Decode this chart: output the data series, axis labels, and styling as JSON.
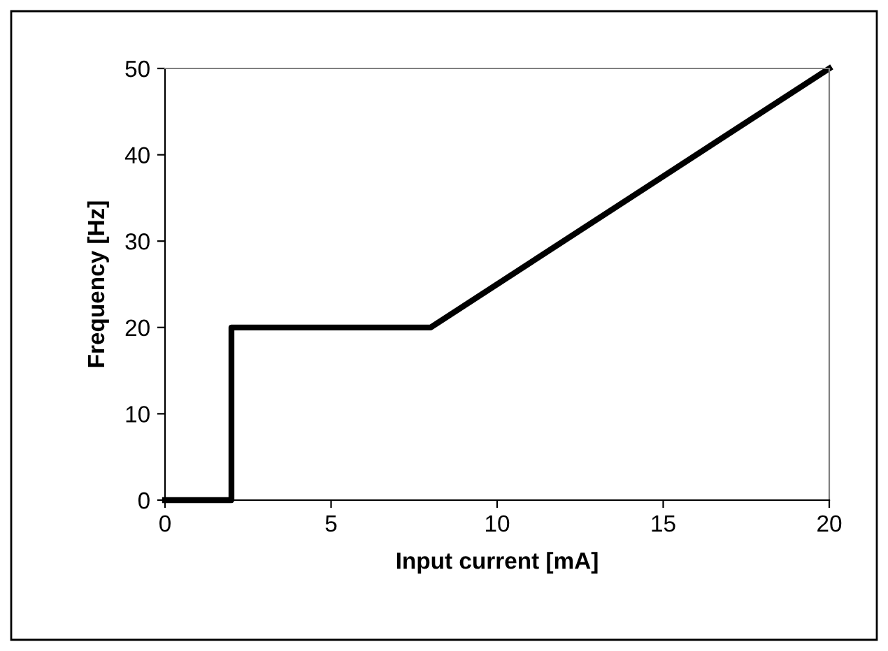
{
  "chart_data": {
    "type": "line",
    "xlabel": "Input current [mA]",
    "ylabel": "Frequency [Hz]",
    "x": [
      0,
      2,
      2,
      8,
      20
    ],
    "series": [
      {
        "color": "#000000",
        "values": [
          0,
          0,
          20,
          20,
          50
        ]
      }
    ],
    "xlim": [
      0,
      20
    ],
    "xticks": [
      0,
      5,
      10,
      15,
      20
    ],
    "ylim": [
      0,
      50
    ],
    "yticks": [
      0,
      10,
      20,
      30,
      40,
      50
    ],
    "grid": false,
    "marker": "none",
    "line_style": "solid"
  }
}
